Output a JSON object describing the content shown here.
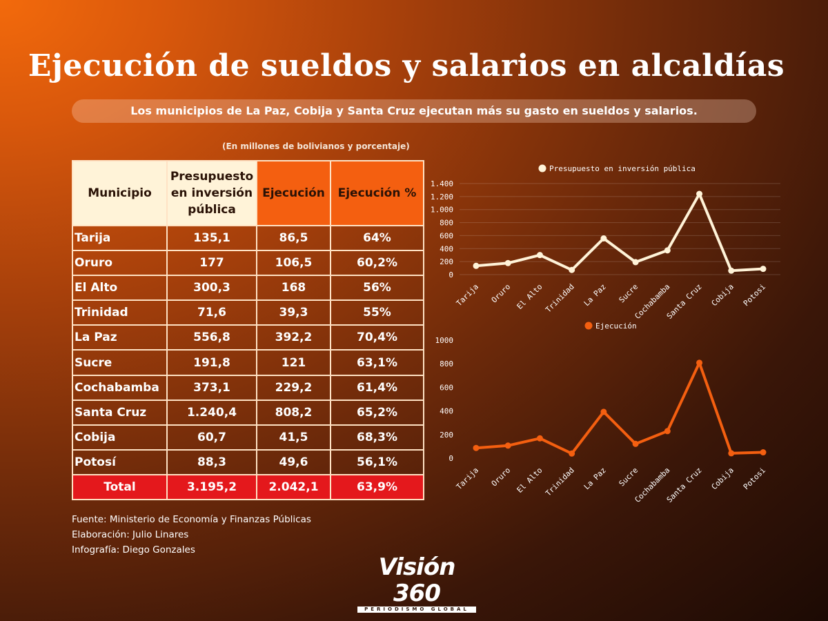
{
  "title": "Ejecución de sueldos y salarios en alcaldías",
  "subtitle": "Los municipios de La Paz, Cobija y Santa Cruz ejecutan más su gasto en sueldos y salarios.",
  "units_note": "(En millones de bolivianos y porcentaje)",
  "table": {
    "headers": [
      "Municipio",
      "Presupuesto en inversión pública",
      "Ejecución",
      "Ejecución %"
    ],
    "rows": [
      [
        "Tarija",
        "135,1",
        "86,5",
        "64%"
      ],
      [
        "Oruro",
        "177",
        "106,5",
        "60,2%"
      ],
      [
        "El Alto",
        "300,3",
        "168",
        "56%"
      ],
      [
        "Trinidad",
        "71,6",
        "39,3",
        "55%"
      ],
      [
        "La Paz",
        "556,8",
        "392,2",
        "70,4%"
      ],
      [
        "Sucre",
        "191,8",
        "121",
        "63,1%"
      ],
      [
        "Cochabamba",
        "373,1",
        "229,2",
        "61,4%"
      ],
      [
        "Santa Cruz",
        "1.240,4",
        "808,2",
        "65,2%"
      ],
      [
        "Cobija",
        "60,7",
        "41,5",
        "68,3%"
      ],
      [
        "Potosí",
        "88,3",
        "49,6",
        "56,1%"
      ]
    ],
    "total": [
      "Total",
      "3.195,2",
      "2.042,1",
      "63,9%"
    ]
  },
  "credits": [
    "Fuente: Ministerio de Economía y Finanzas Públicas",
    "Elaboración: Julio Linares",
    "Infografía: Diego Gonzales"
  ],
  "logo": {
    "name": "Visión 360",
    "tagline": "PERIODISMO GLOBAL"
  },
  "colors": {
    "cream": "#fff3d8",
    "orange": "#f45f10",
    "red": "#e4181c"
  },
  "chart_data": [
    {
      "type": "line",
      "legend": "Presupuesto en inversión pública",
      "color": "#fff3d8",
      "categories": [
        "Tarija",
        "Oruro",
        "El Alto",
        "Trinidad",
        "La Paz",
        "Sucre",
        "Cochabamba",
        "Santa Cruz",
        "Cobija",
        "Potosi"
      ],
      "values": [
        135.1,
        177,
        300.3,
        71.6,
        556.8,
        191.8,
        373.1,
        1240.4,
        60.7,
        88.3
      ],
      "ylim": [
        0,
        1400
      ],
      "yticks": [
        0,
        200,
        400,
        600,
        800,
        1000,
        1200,
        1400
      ],
      "ytick_labels": [
        "0",
        "200",
        "400",
        "600",
        "800",
        "1.000",
        "1.200",
        "1.400"
      ],
      "grid": true
    },
    {
      "type": "line",
      "legend": "Ejecución",
      "color": "#f45f10",
      "categories": [
        "Tarija",
        "Oruro",
        "El Alto",
        "Trinidad",
        "La Paz",
        "Sucre",
        "Cochabamba",
        "Santa Cruz",
        "Cobija",
        "Potosi"
      ],
      "values": [
        86.5,
        106.5,
        168,
        39.3,
        392.2,
        121,
        229.2,
        808.2,
        41.5,
        49.6
      ],
      "ylim": [
        0,
        1000
      ],
      "yticks": [
        0,
        200,
        400,
        600,
        800,
        1000
      ],
      "ytick_labels": [
        "0",
        "200",
        "400",
        "600",
        "800",
        "1000"
      ],
      "grid": false
    }
  ]
}
